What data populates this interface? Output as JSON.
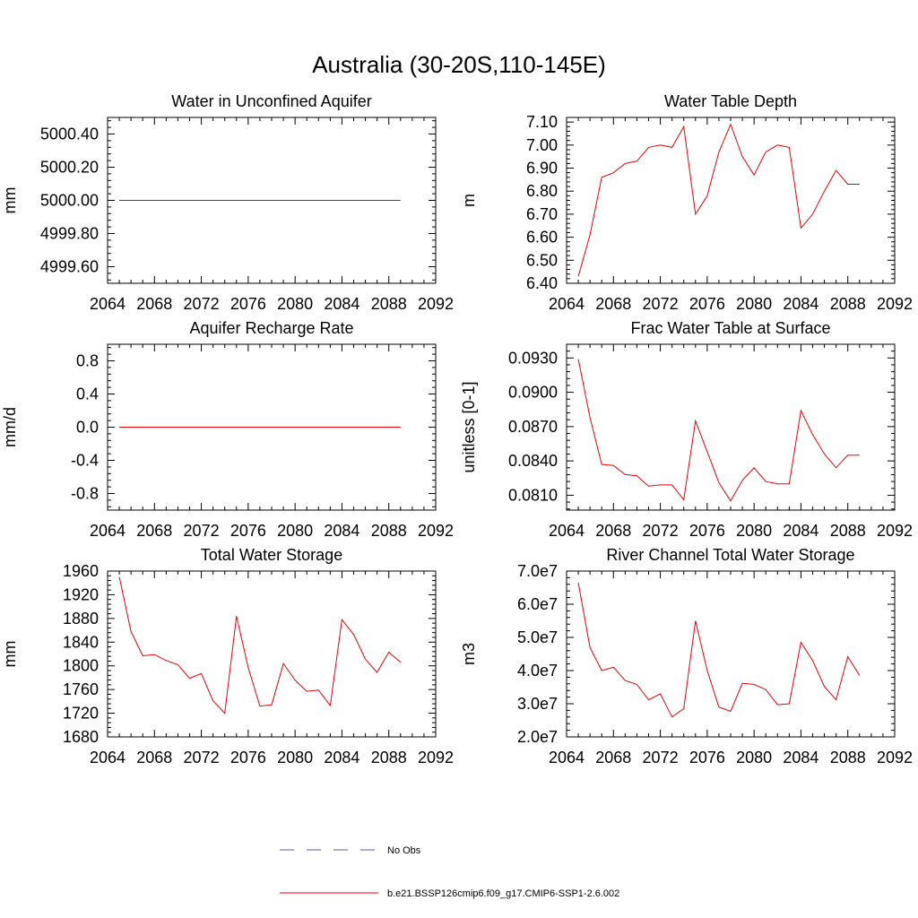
{
  "figure": {
    "title": "Australia (30-20S,110-145E)"
  },
  "legend": {
    "entries": [
      {
        "label": "No Obs",
        "color": "#5a5aa8",
        "dash": true
      },
      {
        "label": "b.e21.BSSP126cmip6.f09_g17.CMIP6-SSP1-2.6.002",
        "color": "#e8000b",
        "dash": false
      }
    ]
  },
  "chart_data": [
    {
      "type": "line",
      "title": "Water in Unconfined Aquifer",
      "ylabel": "mm",
      "xlim": [
        2064,
        2092
      ],
      "ylim": [
        4999.5,
        5000.5
      ],
      "xticks": [
        "2064",
        "2068",
        "2072",
        "2076",
        "2080",
        "2084",
        "2088",
        "2092"
      ],
      "yticks": [
        {
          "value": 4999.6,
          "label": "4999.60"
        },
        {
          "value": 4999.8,
          "label": "4999.80"
        },
        {
          "value": 5000.0,
          "label": "5000.00"
        },
        {
          "value": 5000.2,
          "label": "5000.20"
        },
        {
          "value": 5000.4,
          "label": "5000.40"
        }
      ],
      "x": [
        2065,
        2066,
        2067,
        2068,
        2069,
        2070,
        2071,
        2072,
        2073,
        2074,
        2075,
        2076,
        2077,
        2078,
        2079,
        2080,
        2081,
        2082,
        2083,
        2084,
        2085,
        2086,
        2087,
        2088,
        2089
      ],
      "y": [
        5000,
        5000,
        5000,
        5000,
        5000,
        5000,
        5000,
        5000,
        5000,
        5000,
        5000,
        5000,
        5000,
        5000,
        5000,
        5000,
        5000,
        5000,
        5000,
        5000,
        5000,
        5000,
        5000,
        5000,
        5000
      ]
    },
    {
      "type": "line",
      "title": "Water Table Depth",
      "ylabel": "m",
      "xlim": [
        2064,
        2092
      ],
      "ylim": [
        6.4,
        7.12
      ],
      "xticks": [
        "2064",
        "2068",
        "2072",
        "2076",
        "2080",
        "2084",
        "2088",
        "2092"
      ],
      "yticks": [
        {
          "value": 6.4,
          "label": "6.40"
        },
        {
          "value": 6.5,
          "label": "6.50"
        },
        {
          "value": 6.6,
          "label": "6.60"
        },
        {
          "value": 6.7,
          "label": "6.70"
        },
        {
          "value": 6.8,
          "label": "6.80"
        },
        {
          "value": 6.9,
          "label": "6.90"
        },
        {
          "value": 7.0,
          "label": "7.00"
        },
        {
          "value": 7.1,
          "label": "7.10"
        }
      ],
      "x": [
        2065,
        2066,
        2067,
        2068,
        2069,
        2070,
        2071,
        2072,
        2073,
        2074,
        2075,
        2076,
        2077,
        2078,
        2079,
        2080,
        2081,
        2082,
        2083,
        2084,
        2085,
        2086,
        2087,
        2088,
        2089
      ],
      "y": [
        6.43,
        6.61,
        6.86,
        6.88,
        6.92,
        6.93,
        6.99,
        7.0,
        6.99,
        7.08,
        6.7,
        6.78,
        6.97,
        7.09,
        6.95,
        6.87,
        6.97,
        7.0,
        6.99,
        6.64,
        6.7,
        6.8,
        6.89,
        6.83,
        6.83
      ]
    },
    {
      "type": "line",
      "title": "Aquifer Recharge Rate",
      "ylabel": "mm/d",
      "xlim": [
        2064,
        2092
      ],
      "ylim": [
        -1.0,
        1.0
      ],
      "xticks": [
        "2064",
        "2068",
        "2072",
        "2076",
        "2080",
        "2084",
        "2088",
        "2092"
      ],
      "yticks": [
        {
          "value": -0.8,
          "label": "-0.8"
        },
        {
          "value": -0.4,
          "label": "-0.4"
        },
        {
          "value": 0.0,
          "label": "0.0"
        },
        {
          "value": 0.4,
          "label": "0.4"
        },
        {
          "value": 0.8,
          "label": "0.8"
        }
      ],
      "x": [
        2065,
        2066,
        2067,
        2068,
        2069,
        2070,
        2071,
        2072,
        2073,
        2074,
        2075,
        2076,
        2077,
        2078,
        2079,
        2080,
        2081,
        2082,
        2083,
        2084,
        2085,
        2086,
        2087,
        2088,
        2089
      ],
      "y": [
        0,
        0,
        0,
        0,
        0,
        0,
        0,
        0,
        0,
        0,
        0,
        0,
        0,
        0,
        0,
        0,
        0,
        0,
        0,
        0,
        0,
        0,
        0,
        0,
        0
      ]
    },
    {
      "type": "line",
      "title": "Frac Water Table at Surface",
      "ylabel": "unitless [0-1]",
      "xlim": [
        2064,
        2092
      ],
      "ylim": [
        0.0797,
        0.0942
      ],
      "xticks": [
        "2064",
        "2068",
        "2072",
        "2076",
        "2080",
        "2084",
        "2088",
        "2092"
      ],
      "yticks": [
        {
          "value": 0.081,
          "label": "0.0810"
        },
        {
          "value": 0.084,
          "label": "0.0840"
        },
        {
          "value": 0.087,
          "label": "0.0870"
        },
        {
          "value": 0.09,
          "label": "0.0900"
        },
        {
          "value": 0.093,
          "label": "0.0930"
        }
      ],
      "x": [
        2065,
        2066,
        2067,
        2068,
        2069,
        2070,
        2071,
        2072,
        2073,
        2074,
        2075,
        2076,
        2077,
        2078,
        2079,
        2080,
        2081,
        2082,
        2083,
        2084,
        2085,
        2086,
        2087,
        2088,
        2089
      ],
      "y": [
        0.0929,
        0.0878,
        0.0837,
        0.0836,
        0.0828,
        0.0827,
        0.0818,
        0.0819,
        0.0819,
        0.0806,
        0.0875,
        0.0848,
        0.0821,
        0.0805,
        0.0823,
        0.0834,
        0.0822,
        0.082,
        0.082,
        0.0884,
        0.0863,
        0.0846,
        0.0834,
        0.0845,
        0.0845
      ]
    },
    {
      "type": "line",
      "title": "Total Water Storage",
      "ylabel": "mm",
      "xlim": [
        2064,
        2092
      ],
      "ylim": [
        1680,
        1960
      ],
      "xticks": [
        "2064",
        "2068",
        "2072",
        "2076",
        "2080",
        "2084",
        "2088",
        "2092"
      ],
      "yticks": [
        {
          "value": 1680,
          "label": "1680"
        },
        {
          "value": 1720,
          "label": "1720"
        },
        {
          "value": 1760,
          "label": "1760"
        },
        {
          "value": 1800,
          "label": "1800"
        },
        {
          "value": 1840,
          "label": "1840"
        },
        {
          "value": 1880,
          "label": "1880"
        },
        {
          "value": 1920,
          "label": "1920"
        },
        {
          "value": 1960,
          "label": "1960"
        }
      ],
      "x": [
        2065,
        2066,
        2067,
        2068,
        2069,
        2070,
        2071,
        2072,
        2073,
        2074,
        2075,
        2076,
        2077,
        2078,
        2079,
        2080,
        2081,
        2082,
        2083,
        2084,
        2085,
        2086,
        2087,
        2088,
        2089
      ],
      "y": [
        1950,
        1858,
        1817,
        1819,
        1809,
        1802,
        1779,
        1787,
        1741,
        1720,
        1884,
        1797,
        1732,
        1734,
        1804,
        1776,
        1757,
        1759,
        1733,
        1878,
        1853,
        1811,
        1789,
        1823,
        1806
      ]
    },
    {
      "type": "line",
      "title": "River Channel Total Water Storage",
      "ylabel": "m3",
      "xlim": [
        2064,
        2092
      ],
      "ylim": [
        20000000,
        70000000
      ],
      "xticks": [
        "2064",
        "2068",
        "2072",
        "2076",
        "2080",
        "2084",
        "2088",
        "2092"
      ],
      "yticks": [
        {
          "value": 20000000,
          "label": "2.0e7"
        },
        {
          "value": 30000000,
          "label": "3.0e7"
        },
        {
          "value": 40000000,
          "label": "4.0e7"
        },
        {
          "value": 50000000,
          "label": "5.0e7"
        },
        {
          "value": 60000000,
          "label": "6.0e7"
        },
        {
          "value": 70000000,
          "label": "7.0e7"
        }
      ],
      "x": [
        2065,
        2066,
        2067,
        2068,
        2069,
        2070,
        2071,
        2072,
        2073,
        2074,
        2075,
        2076,
        2077,
        2078,
        2079,
        2080,
        2081,
        2082,
        2083,
        2084,
        2085,
        2086,
        2087,
        2088,
        2089
      ],
      "y": [
        66500000,
        47000000,
        40000000,
        41000000,
        37000000,
        35800000,
        31200000,
        33000000,
        26000000,
        28500000,
        55000000,
        40000000,
        29000000,
        27700000,
        36200000,
        35800000,
        34300000,
        29700000,
        30000000,
        48500000,
        43000000,
        35200000,
        31200000,
        44200000,
        38500000
      ]
    }
  ]
}
